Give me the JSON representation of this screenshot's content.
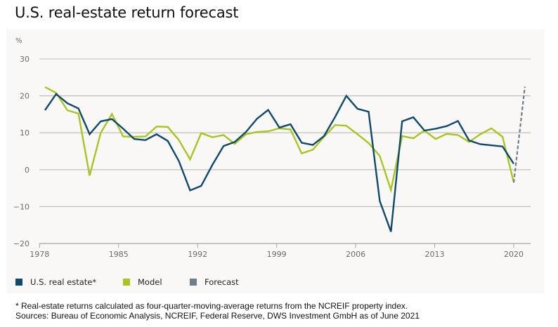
{
  "title": "U.S. real-estate return forecast",
  "footnotes": [
    "* Real-estate returns calculated as four-quarter-moving-average returns from the NCREIF property index.",
    "Sources: Bureau of Economic Analysis, NCREIF, Federal Reserve, DWS Investment GmbH as of June 2021"
  ],
  "legend": [
    {
      "label": "U.S. real estate*",
      "color": "#0f4a6c"
    },
    {
      "label": "Model",
      "color": "#a9c520"
    },
    {
      "label": "Forecast",
      "color": "#6e7f87"
    }
  ],
  "chart_data": {
    "type": "line",
    "title": "U.S. real-estate return forecast",
    "ylabel": "%",
    "xlabel": "",
    "ylim": [
      -20,
      30
    ],
    "yticks": [
      30,
      20,
      10,
      0,
      -10,
      -20
    ],
    "ytick_labels": [
      "30",
      "20",
      "10",
      "0",
      "−10",
      "−20"
    ],
    "xticks": [
      1978,
      1985,
      1992,
      1999,
      2006,
      2013,
      2020
    ],
    "xlim": [
      1977.5,
      2021.5
    ],
    "grid": "horizontal",
    "legend_position": "bottom-left",
    "x": [
      1978,
      1979,
      1980,
      1981,
      1982,
      1983,
      1984,
      1985,
      1986,
      1987,
      1988,
      1989,
      1990,
      1991,
      1992,
      1993,
      1994,
      1995,
      1996,
      1997,
      1998,
      1999,
      2000,
      2001,
      2002,
      2003,
      2004,
      2005,
      2006,
      2007,
      2008,
      2009,
      2010,
      2011,
      2012,
      2013,
      2014,
      2015,
      2016,
      2017,
      2018,
      2019,
      2020
    ],
    "series": [
      {
        "name": "U.S. real estate*",
        "color": "#0f4a6c",
        "style": "solid",
        "values": [
          16.1,
          20.5,
          18.0,
          16.6,
          9.6,
          13.1,
          13.7,
          11.1,
          8.3,
          8.0,
          9.6,
          7.8,
          2.3,
          -5.6,
          -4.4,
          1.3,
          6.4,
          7.5,
          10.2,
          13.8,
          16.2,
          11.4,
          12.3,
          7.3,
          6.7,
          9.1,
          14.3,
          20.0,
          16.5,
          15.7,
          -8.5,
          -16.8,
          13.1,
          14.2,
          10.6,
          11.1,
          11.8,
          13.2,
          7.9,
          6.9,
          6.6,
          6.3,
          1.6
        ]
      },
      {
        "name": "Model",
        "color": "#a9c520",
        "style": "solid",
        "values": [
          22.4,
          20.8,
          16.1,
          15.2,
          -1.6,
          10.0,
          15.1,
          9.0,
          8.9,
          9.0,
          11.7,
          11.6,
          8.0,
          2.8,
          9.9,
          8.8,
          9.4,
          7.0,
          9.6,
          10.2,
          10.4,
          11.2,
          10.9,
          4.4,
          5.4,
          8.9,
          12.1,
          11.9,
          9.6,
          7.2,
          3.7,
          -5.5,
          9.1,
          8.5,
          10.6,
          8.3,
          9.7,
          9.4,
          7.5,
          9.6,
          11.2,
          8.9,
          -3.4
        ]
      },
      {
        "name": "Forecast",
        "color": "#6e7f87",
        "style": "dashed",
        "x": [
          2020,
          2021
        ],
        "values": [
          -3.5,
          22.5
        ]
      }
    ]
  }
}
